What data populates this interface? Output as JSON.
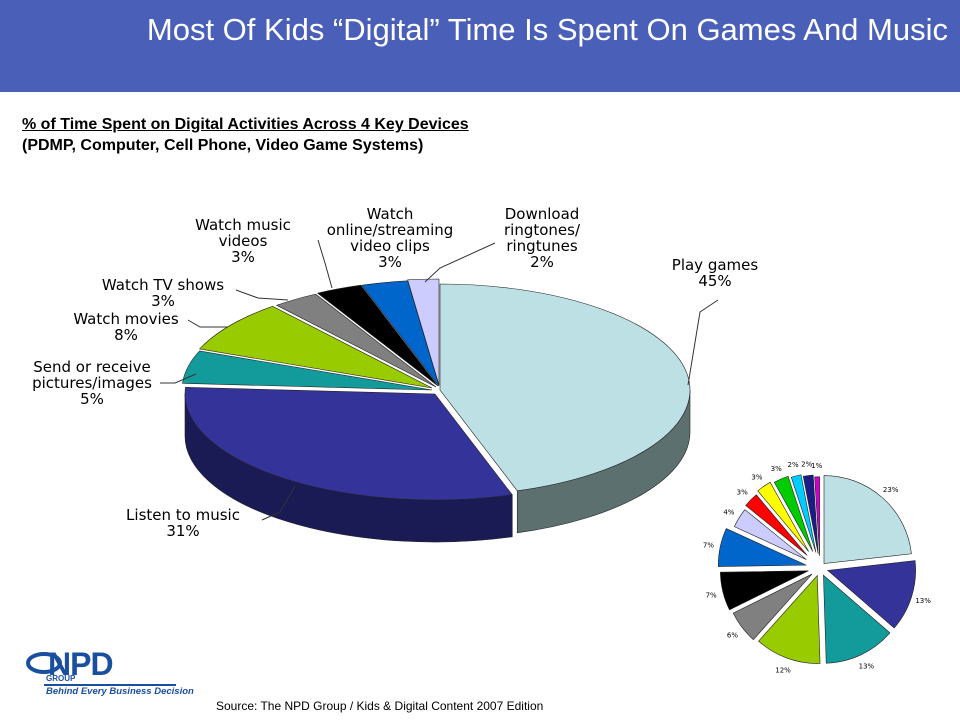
{
  "title": "Most Of Kids “Digital” Time Is Spent On Games And Music",
  "subtitle": {
    "line1": "% of Time Spent on Digital Activities Across 4 Key Devices",
    "line2": "(PDMP, Computer, Cell Phone, Video Game Systems)"
  },
  "source": "Source:  The NPD Group / Kids & Digital Content 2007 Edition",
  "logo": {
    "mark": "NPD",
    "group": "GROUP",
    "tagline": "Behind Every Business Decision"
  },
  "chart_data": [
    {
      "type": "pie",
      "style": "3d-exploded",
      "slices": [
        {
          "label": "Play games",
          "value": 45,
          "value_label": "45%",
          "color": "#bde0e4",
          "side_color": "#5c7070"
        },
        {
          "label": "Listen to music",
          "value": 31,
          "value_label": "31%",
          "color": "#333399",
          "side_color": "#1a1a55"
        },
        {
          "label": "Send or receive pictures/images",
          "value": 5,
          "value_label": "5%",
          "color": "#139b9b",
          "side_color": "#0a5555"
        },
        {
          "label": "Watch movies",
          "value": 8,
          "value_label": "8%",
          "color": "#99cc00",
          "side_color": "#556f00"
        },
        {
          "label": "Watch TV shows",
          "value": 3,
          "value_label": "3%",
          "color": "#808080",
          "side_color": "#444444"
        },
        {
          "label": "Watch music videos",
          "value": 3,
          "value_label": "3%",
          "color": "#000000",
          "side_color": "#000000"
        },
        {
          "label": "Watch online/streaming video clips",
          "value": 3,
          "value_label": "3%",
          "color": "#0066cc",
          "side_color": "#003a77"
        },
        {
          "label": "Download ringtones/ ringtunes",
          "value": 2,
          "value_label": "2%",
          "color": "#ccccff",
          "side_color": "#7777aa"
        }
      ]
    },
    {
      "type": "pie",
      "style": "exploded-inset",
      "slices": [
        {
          "value": 23,
          "value_label": "23%",
          "color": "#bde0e4"
        },
        {
          "value": 13,
          "value_label": "13%",
          "color": "#333399"
        },
        {
          "value": 13,
          "value_label": "13%",
          "color": "#139b9b"
        },
        {
          "value": 12,
          "value_label": "12%",
          "color": "#99cc00"
        },
        {
          "value": 6,
          "value_label": "6%",
          "color": "#808080"
        },
        {
          "value": 7,
          "value_label": "7%",
          "color": "#000000"
        },
        {
          "value": 7,
          "value_label": "7%",
          "color": "#0066cc"
        },
        {
          "value": 4,
          "value_label": "4%",
          "color": "#ccccff"
        },
        {
          "value": 3,
          "value_label": "3%",
          "color": "#ff0000"
        },
        {
          "value": 3,
          "value_label": "3%",
          "color": "#ffff00"
        },
        {
          "value": 3,
          "value_label": "3%",
          "color": "#00cc00"
        },
        {
          "value": 2,
          "value_label": "2%",
          "color": "#00ccff"
        },
        {
          "value": 2,
          "value_label": "2%",
          "color": "#1a1a88"
        },
        {
          "value": 1,
          "value_label": "1%",
          "color": "#cc00cc"
        }
      ]
    }
  ]
}
